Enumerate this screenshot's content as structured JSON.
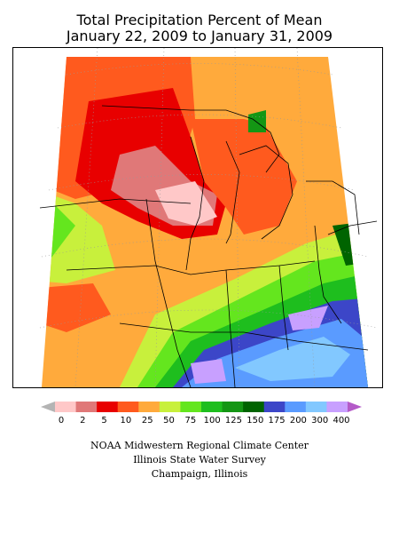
{
  "title": {
    "line1": "Total Precipitation Percent of Mean",
    "line2": "January 22, 2009 to January 31, 2009"
  },
  "legend": {
    "labels": [
      "0",
      "2",
      "5",
      "10",
      "25",
      "50",
      "75",
      "100",
      "125",
      "150",
      "175",
      "200",
      "300",
      "400"
    ],
    "colors": [
      "#ffc8c8",
      "#e07878",
      "#e80000",
      "#ff5a1e",
      "#ffaa3c",
      "#c8f03c",
      "#64e61e",
      "#1ebe1e",
      "#149614",
      "#006400",
      "#3c46c8",
      "#5a9bff",
      "#82c8ff",
      "#c8a0ff"
    ],
    "low_arrow_color": "#b4b4b4",
    "high_arrow_color": "#b45ac8"
  },
  "credits": {
    "line1": "NOAA Midwestern Regional Climate Center",
    "line2": "Illinois State Water Survey",
    "line3": "Champaign, Illinois"
  },
  "map": {
    "region": "Upper Midwest / Ohio Valley",
    "coastline_color": "#000000",
    "graticule_color": "#999999"
  }
}
